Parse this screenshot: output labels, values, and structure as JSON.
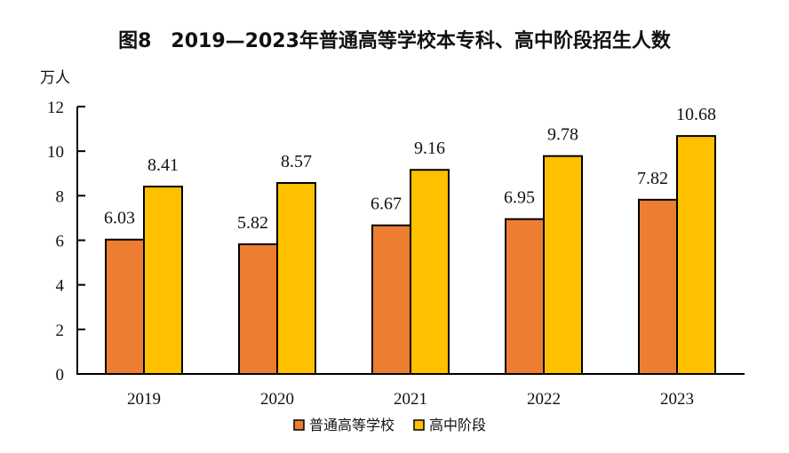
{
  "chart_data": {
    "type": "bar",
    "title": "图8　2019—2023年普通高等学校本专科、高中阶段招生人数",
    "ylabel": "万人",
    "xlabel": "",
    "ylim": [
      0,
      12
    ],
    "yticks": [
      0,
      2,
      4,
      6,
      8,
      10,
      12
    ],
    "grid": false,
    "categories": [
      "2019",
      "2020",
      "2021",
      "2022",
      "2023"
    ],
    "series": [
      {
        "name": "普通高等学校",
        "color": "#ED7D31",
        "values": [
          6.03,
          5.82,
          6.67,
          6.95,
          7.82
        ],
        "labels": [
          "6.03",
          "5.82",
          "6.67",
          "6.95",
          "7.82"
        ]
      },
      {
        "name": "高中阶段",
        "color": "#FFC000",
        "values": [
          8.41,
          8.57,
          9.16,
          9.78,
          10.68
        ],
        "labels": [
          "8.41",
          "8.57",
          "9.16",
          "9.78",
          "10.68"
        ]
      }
    ],
    "legend_position": "bottom-center",
    "data_labels": true
  }
}
